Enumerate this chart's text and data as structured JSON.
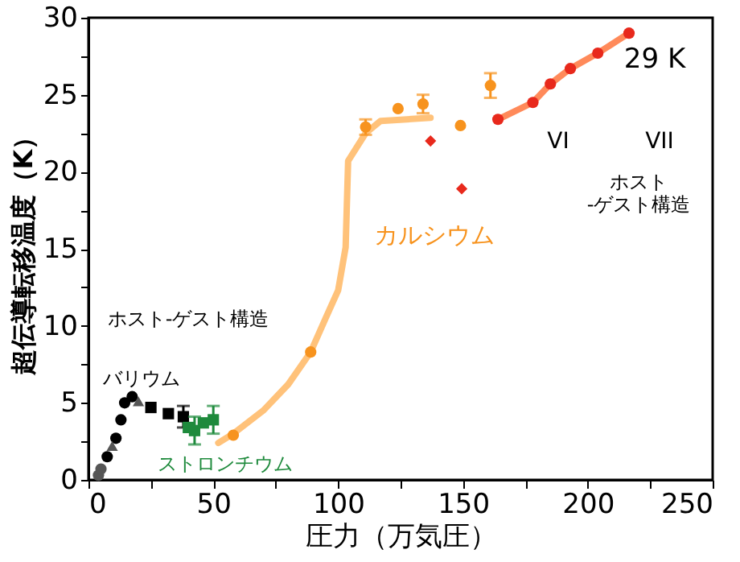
{
  "chart_data": {
    "type": "scatter",
    "xlabel": "圧力（万気圧）",
    "ylabel": "超伝導転移温度（K）",
    "xlim": [
      0,
      250
    ],
    "ylim": [
      0,
      30
    ],
    "xticks": [
      0,
      {
        "value": 25,
        "label": null
      },
      50,
      {
        "value": 75,
        "label": null
      },
      100,
      {
        "value": 125,
        "label": null
      },
      150,
      {
        "value": 175,
        "label": null
      },
      200,
      {
        "value": 225,
        "label": null
      },
      250
    ],
    "yticks": [
      0,
      {
        "value": 2.5,
        "label": null
      },
      5,
      {
        "value": 7.5,
        "label": null
      },
      10,
      {
        "value": 12.5,
        "label": null
      },
      15,
      {
        "value": 17.5,
        "label": null
      },
      20,
      {
        "value": 22.5,
        "label": null
      },
      25,
      {
        "value": 27.5,
        "label": null
      },
      30
    ],
    "series": [
      {
        "type": "line",
        "color": "#ffc27a",
        "x": [
          52,
          58,
          70,
          80,
          89,
          95,
          100,
          103,
          104,
          111,
          117,
          137
        ],
        "values": [
          2.4,
          3.0,
          4.5,
          6.2,
          8.3,
          10.5,
          12.3,
          15.1,
          20.7,
          22.5,
          23.3,
          23.5
        ]
      },
      {
        "type": "line",
        "color": "#ff8a5a",
        "x": [
          164,
          178,
          185,
          193,
          204,
          216.5
        ],
        "values": [
          23.4,
          24.5,
          25.7,
          26.7,
          27.7,
          29.0
        ]
      },
      {
        "color": "#000000",
        "marker": "circle",
        "x": [
          7.5,
          11,
          13,
          14.5,
          17.5
        ],
        "values": [
          1.5,
          2.7,
          3.9,
          5.0,
          5.4
        ]
      },
      {
        "color": "#555555",
        "marker": "circle",
        "x": [
          4,
          5
        ],
        "values": [
          0.3,
          0.7
        ]
      },
      {
        "color": "#555555",
        "marker": "triangle",
        "x": [
          9.5,
          20
        ],
        "values": [
          2.2,
          5.1
        ]
      },
      {
        "color": "#000000",
        "marker": "square",
        "x": [
          25,
          32,
          38
        ],
        "values": [
          4.7,
          4.3,
          4.1
        ],
        "errors": [
          null,
          null,
          0.7
        ]
      },
      {
        "color": "#1e8a3c",
        "marker": "square",
        "x": [
          40,
          42.5,
          46,
          50
        ],
        "values": [
          3.4,
          3.2,
          3.7,
          3.9
        ],
        "errors": [
          null,
          0.9,
          null,
          0.9
        ]
      },
      {
        "color": "#f7931e",
        "marker": "circle",
        "x": [
          58,
          89,
          111,
          124,
          134,
          149,
          161
        ],
        "values": [
          2.9,
          8.3,
          22.9,
          24.1,
          24.4,
          23.0,
          25.6
        ],
        "errors": [
          null,
          null,
          0.5,
          null,
          0.6,
          null,
          0.8
        ]
      },
      {
        "color": "#e8291c",
        "marker": "diamond",
        "x": [
          137,
          149.5
        ],
        "values": [
          22.0,
          18.9
        ]
      },
      {
        "color": "#e8291c",
        "marker": "circle",
        "x": [
          164,
          178,
          185,
          193,
          204,
          216.5
        ],
        "values": [
          23.4,
          24.5,
          25.7,
          26.7,
          27.7,
          29.0
        ]
      }
    ],
    "annotations": [
      "ホスト-ゲスト構造",
      "バリウム",
      "ストロンチウム",
      "カルシウム",
      "29 K",
      "VI",
      "VII",
      "ホスト\n-ゲスト構造"
    ]
  }
}
